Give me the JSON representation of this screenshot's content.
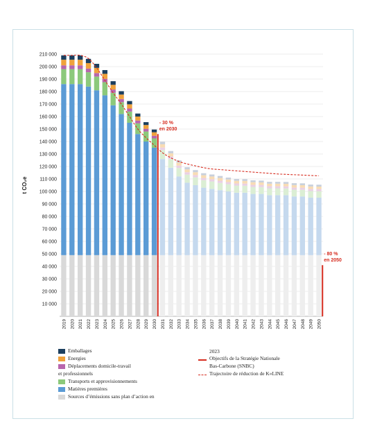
{
  "chart_data": {
    "type": "bar",
    "stacked": true,
    "ylabel": "t CO₂e",
    "ylim": [
      0,
      210000
    ],
    "yticks": [
      10000,
      20000,
      30000,
      40000,
      50000,
      60000,
      70000,
      80000,
      90000,
      100000,
      110000,
      120000,
      130000,
      140000,
      150000,
      160000,
      170000,
      180000,
      190000,
      200000,
      210000
    ],
    "ytick_labels": [
      "10 000",
      "20 000",
      "30 000",
      "40 000",
      "50 000",
      "60 000",
      "70 000",
      "80 000",
      "90 000",
      "100 000",
      "110 000",
      "120 000",
      "130 000",
      "140 000",
      "150 000",
      "160 000",
      "170 000",
      "180 000",
      "190 000",
      "200 000",
      "210 000"
    ],
    "grid": true,
    "categories": [
      "2019",
      "2020",
      "2021",
      "2022",
      "2023",
      "2024",
      "2025",
      "2026",
      "2027",
      "2028",
      "2029",
      "2030",
      "2031",
      "2032",
      "2033",
      "2034",
      "2035",
      "2036",
      "2037",
      "2038",
      "2039",
      "2040",
      "2041",
      "2042",
      "2043",
      "2044",
      "2045",
      "2046",
      "2047",
      "2048",
      "2049",
      "2050"
    ],
    "projection_start_category": "2031",
    "series": [
      {
        "name": "Sources d'émissions sans plan d'action en",
        "color": "#d9d9d9",
        "color_projected": "#eeeeee",
        "values": [
          49000,
          49000,
          49000,
          49000,
          49000,
          49000,
          49000,
          49000,
          49000,
          49000,
          49000,
          49000,
          49000,
          49000,
          49000,
          49000,
          49000,
          49000,
          49000,
          49000,
          49000,
          49000,
          49000,
          49000,
          49000,
          49000,
          49000,
          49000,
          49000,
          49000,
          49000,
          49000
        ]
      },
      {
        "name": "Matières premières",
        "color": "#5b9bd5",
        "color_projected": "#c5d9ee",
        "values": [
          137000,
          137000,
          137000,
          135000,
          132000,
          128000,
          120000,
          113000,
          106000,
          97000,
          91000,
          86000,
          77000,
          70000,
          63000,
          58000,
          56000,
          54000,
          53000,
          52000,
          51000,
          50000,
          50000,
          49000,
          49000,
          48000,
          48000,
          48000,
          47000,
          47000,
          46000,
          46000
        ]
      },
      {
        "name": "Transports et approvisionnements",
        "color": "#8cc97b",
        "color_projected": "#dbeed4",
        "values": [
          12000,
          12000,
          12000,
          11500,
          11000,
          10500,
          10000,
          9500,
          9000,
          8500,
          8000,
          7500,
          7200,
          7000,
          6800,
          6500,
          6300,
          6000,
          6000,
          5800,
          5800,
          5700,
          5600,
          5600,
          5500,
          5500,
          5500,
          5400,
          5400,
          5300,
          5300,
          5200
        ]
      },
      {
        "name": "Déplacements domicile-travail et professionnels",
        "color": "#b866ad",
        "color_projected": "#ead0e4",
        "values": [
          3000,
          3000,
          3000,
          2900,
          2800,
          2700,
          2600,
          2500,
          2400,
          2300,
          2200,
          2100,
          2000,
          2000,
          1900,
          1900,
          1800,
          1800,
          1800,
          1800,
          1700,
          1700,
          1700,
          1700,
          1700,
          1700,
          1700,
          1700,
          1700,
          1700,
          1700,
          1700
        ]
      },
      {
        "name": "Energies",
        "color": "#f0a23c",
        "color_projected": "#f8dcb4",
        "values": [
          4500,
          4500,
          4500,
          4400,
          4200,
          4000,
          3800,
          3600,
          3400,
          3200,
          3000,
          2800,
          2600,
          2500,
          2400,
          2300,
          2300,
          2200,
          2200,
          2200,
          2100,
          2100,
          2100,
          2100,
          2000,
          2000,
          2000,
          2000,
          2000,
          2000,
          2000,
          2000
        ]
      },
      {
        "name": "Emballages",
        "color": "#1c3f5f",
        "color_projected": "#c8d0dc",
        "values": [
          3500,
          3500,
          3500,
          3400,
          3200,
          3000,
          2900,
          2700,
          2600,
          2400,
          2300,
          2200,
          2000,
          1900,
          1800,
          1700,
          1700,
          1600,
          1600,
          1600,
          1500,
          1500,
          1500,
          1500,
          1500,
          1500,
          1500,
          1500,
          1500,
          1500,
          1500,
          1500
        ]
      }
    ],
    "trajectory_values": [
      209000,
      209000,
      209000,
      206500,
      199000,
      189000,
      179000,
      170000,
      160000,
      150000,
      143000,
      137000,
      131000,
      127000,
      124000,
      122000,
      120500,
      119000,
      118000,
      117500,
      117000,
      116500,
      116000,
      115500,
      115000,
      114500,
      114000,
      113700,
      113400,
      113100,
      112800,
      112500
    ],
    "targets": [
      {
        "category": "2030",
        "value": 146000,
        "label_lines": [
          "- 30 %",
          "en 2030"
        ],
        "color": "#d62b1e"
      },
      {
        "category": "2050",
        "value": 41000,
        "label_lines": [
          "- 80 %",
          "en 2050"
        ],
        "color": "#d62b1e"
      }
    ],
    "legend": {
      "left": [
        {
          "label": "Emballages",
          "color": "#1c3f5f"
        },
        {
          "label": "Energies",
          "color": "#f0a23c"
        },
        {
          "label": "Déplacements domicile-travail",
          "label2": "et professionnels",
          "color": "#b866ad"
        },
        {
          "label": "Transports et approvisionnements",
          "color": "#8cc97b"
        },
        {
          "label": "Matières premières",
          "color": "#5b9bd5"
        },
        {
          "label": "Sources d’émissions sans plan d’action en",
          "color": "#d9d9d9"
        }
      ],
      "right_header": "2023",
      "right": [
        {
          "label": "Objectifs de la Stratégie Nationale",
          "label2": "Bas-Carbone (SNBC)",
          "color": "#d62b1e",
          "style": "solid"
        },
        {
          "label": "Trajectoire de réduction de K«LINE",
          "color": "#d62b1e",
          "style": "dashed"
        }
      ]
    }
  }
}
